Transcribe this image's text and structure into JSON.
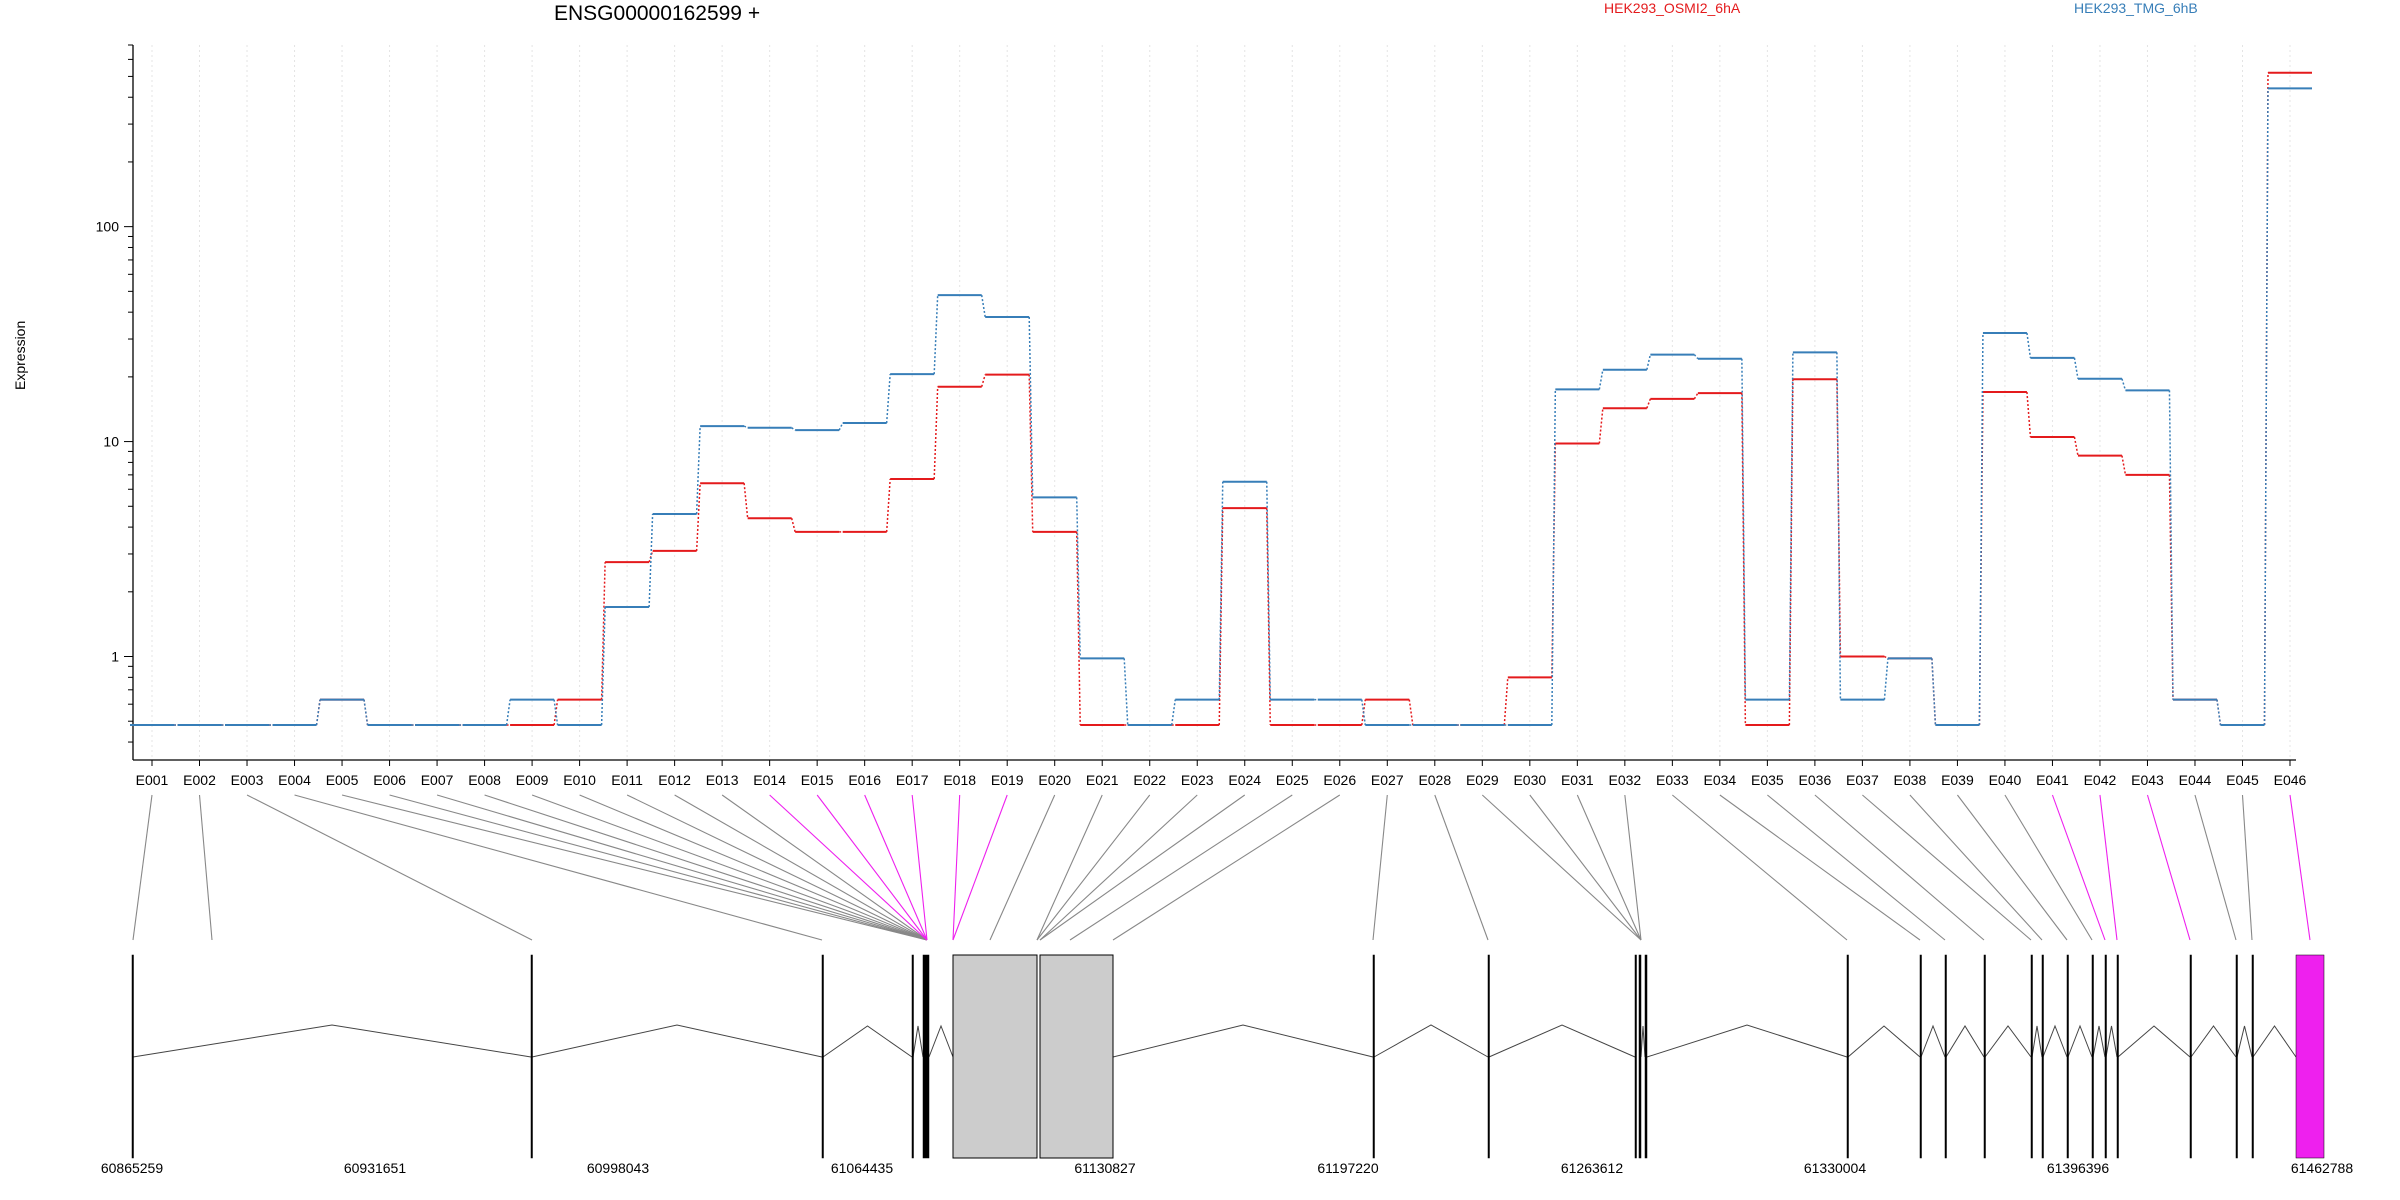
{
  "chart_data": {
    "type": "line",
    "title": "ENSG00000162599 +",
    "ylabel": "Expression",
    "yscale": "log",
    "ylim": [
      0.33,
      700
    ],
    "grid": "vertical dotted lines at each exon",
    "legend": "top-right",
    "yticks": [
      "1",
      "10",
      "100"
    ],
    "categories": [
      "E001",
      "E002",
      "E003",
      "E004",
      "E005",
      "E006",
      "E007",
      "E008",
      "E009",
      "E010",
      "E011",
      "E012",
      "E013",
      "E014",
      "E015",
      "E016",
      "E017",
      "E018",
      "E019",
      "E020",
      "E021",
      "E022",
      "E023",
      "E024",
      "E025",
      "E026",
      "E027",
      "E028",
      "E029",
      "E030",
      "E031",
      "E032",
      "E033",
      "E034",
      "E035",
      "E036",
      "E037",
      "E038",
      "E039",
      "E040",
      "E041",
      "E042",
      "E043",
      "E044",
      "E045",
      "E046"
    ],
    "series": [
      {
        "name": "HEK293_OSMI2_6hA",
        "color": "#e41a1c",
        "values": [
          0.48,
          0.48,
          0.48,
          0.48,
          0.63,
          0.48,
          0.48,
          0.48,
          0.48,
          0.63,
          2.75,
          3.1,
          6.4,
          4.4,
          3.8,
          3.8,
          6.7,
          18,
          20.5,
          3.8,
          0.48,
          0.48,
          0.48,
          4.9,
          0.48,
          0.48,
          0.63,
          0.48,
          0.48,
          0.8,
          9.8,
          14.3,
          15.8,
          16.8,
          0.48,
          19.5,
          1.0,
          0.98,
          0.48,
          17,
          10.5,
          8.6,
          7,
          0.63,
          0.48,
          520
        ]
      },
      {
        "name": "HEK293_TMG_6hB",
        "color": "#377eb8",
        "values": [
          0.48,
          0.48,
          0.48,
          0.48,
          0.63,
          0.48,
          0.48,
          0.48,
          0.63,
          0.48,
          1.7,
          4.6,
          11.8,
          11.6,
          11.3,
          12.2,
          20.6,
          48,
          38,
          5.5,
          0.98,
          0.48,
          0.63,
          6.5,
          0.63,
          0.63,
          0.48,
          0.48,
          0.48,
          0.48,
          17.5,
          21.6,
          25.4,
          24.3,
          0.63,
          26,
          0.63,
          0.98,
          0.48,
          32,
          24.5,
          19.6,
          17.3,
          0.63,
          0.48,
          440
        ]
      }
    ],
    "coordinate_labels": [
      "60865259",
      "60931651",
      "60998043",
      "61064435",
      "61130827",
      "61197220",
      "61263612",
      "61330004",
      "61396396",
      "61462788"
    ],
    "highlighted_exons": [
      "E014",
      "E015",
      "E016",
      "E017",
      "E018",
      "E019",
      "E041",
      "E042",
      "E043",
      "E046"
    ],
    "highlight_color": "#ee20ee"
  }
}
